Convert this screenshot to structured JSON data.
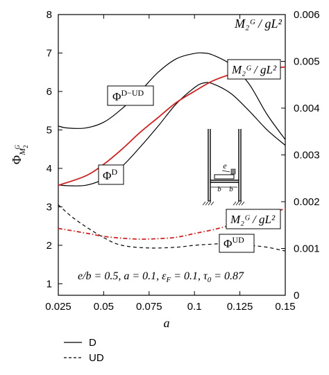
{
  "chart_data": {
    "type": "line",
    "xlabel": "a",
    "ylabel": "Φ",
    "ylabel_sub": "M",
    "ylabel_sub_sup": "G",
    "ylabel_sub_sub": "2",
    "y2label": "M₂ᴳ / gL²",
    "xlim": [
      0.025,
      0.15
    ],
    "ylim": [
      0.7,
      8
    ],
    "y2lim": [
      0,
      0.006
    ],
    "x_ticks": [
      "0.025",
      "0.05",
      "0.075",
      "0.1",
      "0.125",
      "0.15"
    ],
    "y_ticks": [
      "1",
      "2",
      "3",
      "4",
      "5",
      "6",
      "7",
      "8"
    ],
    "y2_ticks": [
      "0",
      "0.001",
      "0.002",
      "0.003",
      "0.004",
      "0.005",
      "0.006"
    ],
    "series": [
      {
        "name": "D",
        "axis": "left",
        "style": "solid",
        "color": "#000000",
        "x": [
          0.025,
          0.03,
          0.04,
          0.05,
          0.06,
          0.07,
          0.08,
          0.09,
          0.1,
          0.105,
          0.11,
          0.12,
          0.13,
          0.14,
          0.15
        ],
        "y": [
          3.57,
          3.55,
          3.56,
          3.72,
          4.05,
          4.55,
          5.1,
          5.68,
          6.1,
          6.22,
          6.2,
          5.95,
          5.5,
          5.0,
          4.6
        ]
      },
      {
        "name": "UD",
        "axis": "left",
        "style": "dashed",
        "color": "#000000",
        "x": [
          0.025,
          0.035,
          0.05,
          0.06,
          0.075,
          0.09,
          0.1,
          0.11,
          0.12,
          0.13,
          0.14,
          0.15
        ],
        "y": [
          3.05,
          2.65,
          2.2,
          2.0,
          1.93,
          1.95,
          2.0,
          2.03,
          2.05,
          2.0,
          1.95,
          1.85
        ]
      },
      {
        "name": "D−UD",
        "axis": "left",
        "style": "solid",
        "color": "#000000",
        "x": [
          0.025,
          0.03,
          0.04,
          0.05,
          0.06,
          0.07,
          0.08,
          0.09,
          0.1,
          0.105,
          0.11,
          0.12,
          0.13,
          0.14,
          0.15
        ],
        "y": [
          5.1,
          5.05,
          5.05,
          5.2,
          5.55,
          6.0,
          6.5,
          6.85,
          6.99,
          7.0,
          6.95,
          6.7,
          6.2,
          5.4,
          4.75
        ]
      },
      {
        "name": "M2G/gL2",
        "axis": "right",
        "style": "solid",
        "color": "#cc2222",
        "x": [
          0.025,
          0.04,
          0.05,
          0.06,
          0.07,
          0.08,
          0.09,
          0.1,
          0.11,
          0.12,
          0.13,
          0.14,
          0.15
        ],
        "y": [
          0.00235,
          0.00255,
          0.0028,
          0.00312,
          0.00348,
          0.0038,
          0.00412,
          0.00436,
          0.00458,
          0.00472,
          0.0048,
          0.00484,
          0.00488
        ]
      },
      {
        "name": "M2G/gL2 UD",
        "axis": "right",
        "style": "dashdot",
        "color": "#cc2222",
        "x": [
          0.025,
          0.04,
          0.05,
          0.06,
          0.07,
          0.08,
          0.09,
          0.1,
          0.11,
          0.12,
          0.13,
          0.14,
          0.15
        ],
        "y": [
          0.00143,
          0.00133,
          0.00126,
          0.00122,
          0.0012,
          0.00121,
          0.00124,
          0.00132,
          0.0014,
          0.0015,
          0.00161,
          0.00174,
          0.00185
        ]
      }
    ],
    "labels": {
      "phi_dud": "Φ",
      "phi_dud_sup": "D−UD",
      "phi_d": "Φ",
      "phi_d_sup": "D",
      "phi_ud": "Φ",
      "phi_ud_sup": "UD",
      "m_upper": "M₂ᴳ / gL²",
      "m_lower": "M₂ᴳ / gL²",
      "inset_e": "e",
      "inset_b1": "b",
      "inset_b2": "b"
    },
    "params_text": "e/b = 0.5, a = 0.1, ε",
    "params_sub": "F",
    "params_text2": " = 0.1, τ",
    "params_sub2": "0",
    "params_text3": " = 0.87",
    "legend": [
      {
        "label": "D",
        "style": "solid"
      },
      {
        "label": "UD",
        "style": "dashed"
      }
    ]
  }
}
